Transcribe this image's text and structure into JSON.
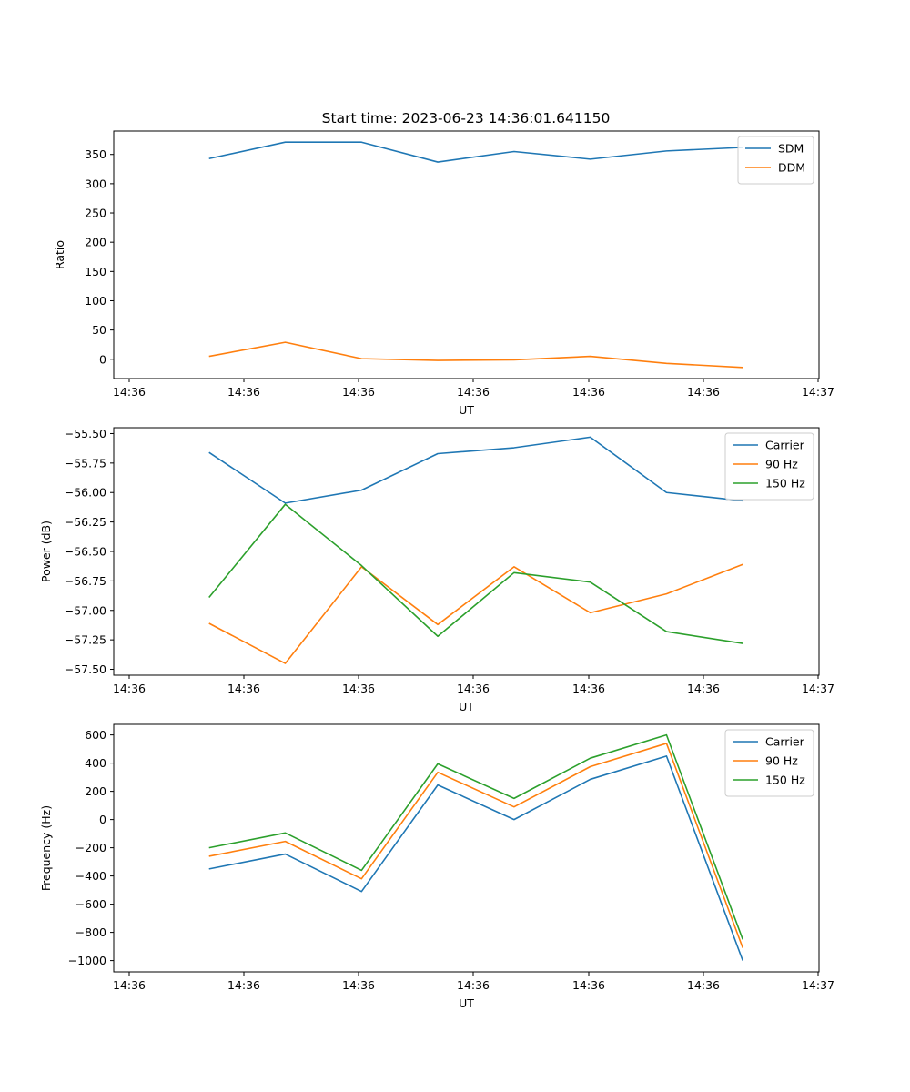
{
  "figure_title": "Start time: 2023-06-23 14:36:01.641150",
  "chart_data": [
    {
      "type": "line",
      "title": "Start time: 2023-06-23 14:36:01.641150",
      "xlabel": "UT",
      "ylabel": "Ratio",
      "x_ticks": [
        "14:36",
        "14:36",
        "14:36",
        "14:36",
        "14:36",
        "14:36",
        "14:36",
        "14:37"
      ],
      "x": [
        1,
        2,
        3,
        4,
        5,
        6,
        7,
        8
      ],
      "xlim": [
        -0.25,
        9.0
      ],
      "ylim": [
        -33,
        390
      ],
      "y_ticks": [
        0,
        50,
        100,
        150,
        200,
        250,
        300,
        350
      ],
      "legend_position": "top-right",
      "series": [
        {
          "name": "SDM",
          "color": "#1f77b4",
          "values": [
            343,
            371,
            371,
            337,
            355,
            342,
            356,
            362
          ]
        },
        {
          "name": "DDM",
          "color": "#ff7f0e",
          "values": [
            5,
            29,
            1,
            -2,
            -1,
            5,
            -7,
            -14
          ]
        }
      ]
    },
    {
      "type": "line",
      "title": "",
      "xlabel": "UT",
      "ylabel": "Power (dB)",
      "x_ticks": [
        "14:36",
        "14:36",
        "14:36",
        "14:36",
        "14:36",
        "14:36",
        "14:36",
        "14:37"
      ],
      "x": [
        1,
        2,
        3,
        4,
        5,
        6,
        7,
        8
      ],
      "xlim": [
        -0.25,
        9.0
      ],
      "ylim": [
        -57.55,
        -55.45
      ],
      "y_ticks": [
        -57.5,
        -57.25,
        -57.0,
        -56.75,
        -56.5,
        -56.25,
        -56.0,
        -55.75,
        -55.5
      ],
      "y_tick_labels": [
        "−57.50",
        "−57.25",
        "−57.00",
        "−56.75",
        "−56.50",
        "−56.25",
        "−56.00",
        "−55.75",
        "−55.50"
      ],
      "legend_position": "top-right",
      "series": [
        {
          "name": "Carrier",
          "color": "#1f77b4",
          "values": [
            -55.66,
            -56.09,
            -55.98,
            -55.67,
            -55.62,
            -55.53,
            -56.0,
            -56.07
          ]
        },
        {
          "name": "90 Hz",
          "color": "#ff7f0e",
          "values": [
            -57.11,
            -57.45,
            -56.63,
            -57.12,
            -56.63,
            -57.02,
            -56.86,
            -56.61
          ]
        },
        {
          "name": "150 Hz",
          "color": "#2ca02c",
          "values": [
            -56.89,
            -56.1,
            -56.62,
            -57.22,
            -56.68,
            -56.76,
            -57.18,
            -57.28
          ]
        }
      ]
    },
    {
      "type": "line",
      "title": "",
      "xlabel": "UT",
      "ylabel": "Frequency (Hz)",
      "x_ticks": [
        "14:36",
        "14:36",
        "14:36",
        "14:36",
        "14:36",
        "14:36",
        "14:36",
        "14:37"
      ],
      "x": [
        1,
        2,
        3,
        4,
        5,
        6,
        7,
        8
      ],
      "xlim": [
        -0.25,
        9.0
      ],
      "ylim": [
        -1080,
        675
      ],
      "y_ticks": [
        -1000,
        -800,
        -600,
        -400,
        -200,
        0,
        200,
        400,
        600
      ],
      "y_tick_labels": [
        "−1000",
        "−800",
        "−600",
        "−400",
        "−200",
        "0",
        "200",
        "400",
        "600"
      ],
      "legend_position": "top-right",
      "series": [
        {
          "name": "Carrier",
          "color": "#1f77b4",
          "values": [
            -350,
            -245,
            -510,
            245,
            0,
            285,
            450,
            -1000
          ]
        },
        {
          "name": "90 Hz",
          "color": "#ff7f0e",
          "values": [
            -260,
            -155,
            -420,
            335,
            90,
            375,
            540,
            -910
          ]
        },
        {
          "name": "150 Hz",
          "color": "#2ca02c",
          "values": [
            -200,
            -95,
            -360,
            395,
            150,
            435,
            600,
            -850
          ]
        }
      ]
    }
  ]
}
